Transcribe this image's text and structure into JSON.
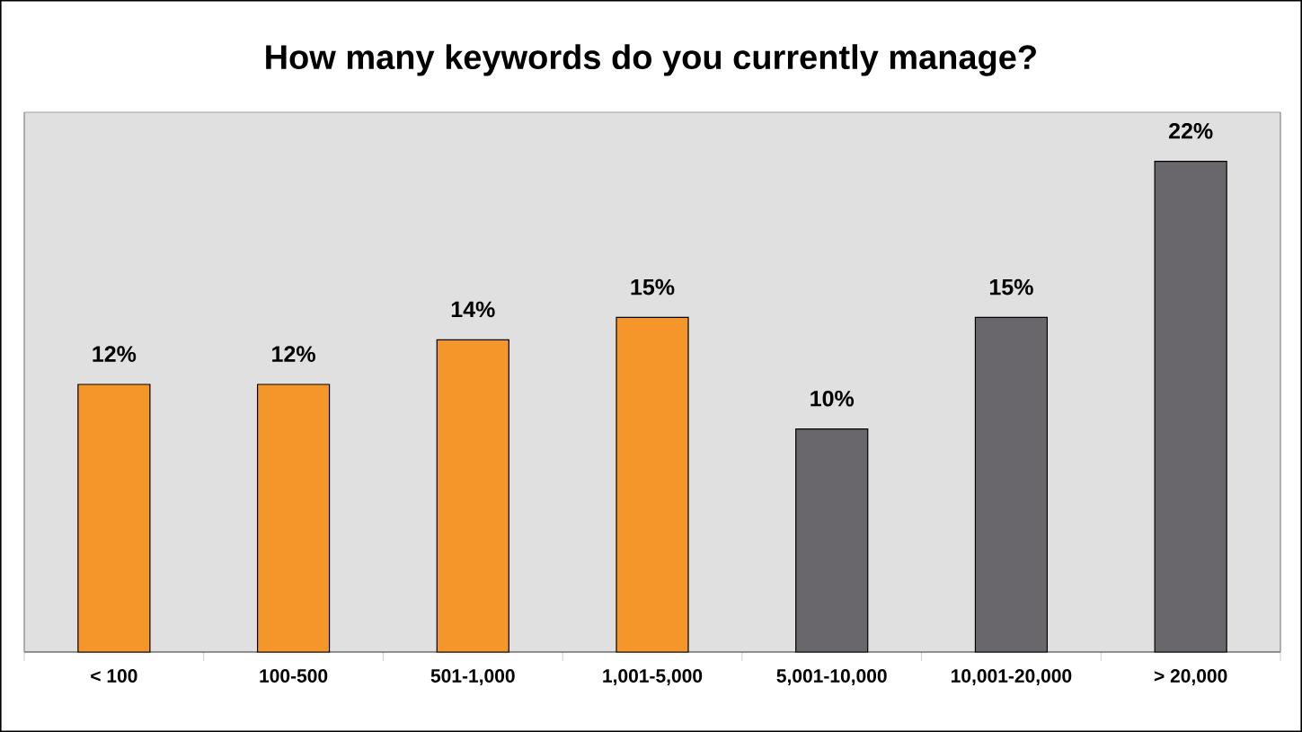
{
  "chart_data": {
    "type": "bar",
    "title": "How many keywords do you currently manage?",
    "categories": [
      "< 100",
      "100-500",
      "501-1,000",
      "1,001-5,000",
      "5,001-10,000",
      "10,001-20,000",
      "> 20,000"
    ],
    "values": [
      12,
      12,
      14,
      15,
      10,
      15,
      22
    ],
    "value_labels": [
      "12%",
      "12%",
      "14%",
      "15%",
      "10%",
      "15%",
      "22%"
    ],
    "colors": [
      "#f5962a",
      "#f5962a",
      "#f5962a",
      "#f5962a",
      "#69676b",
      "#69676b",
      "#69676b"
    ],
    "grid": false
  }
}
